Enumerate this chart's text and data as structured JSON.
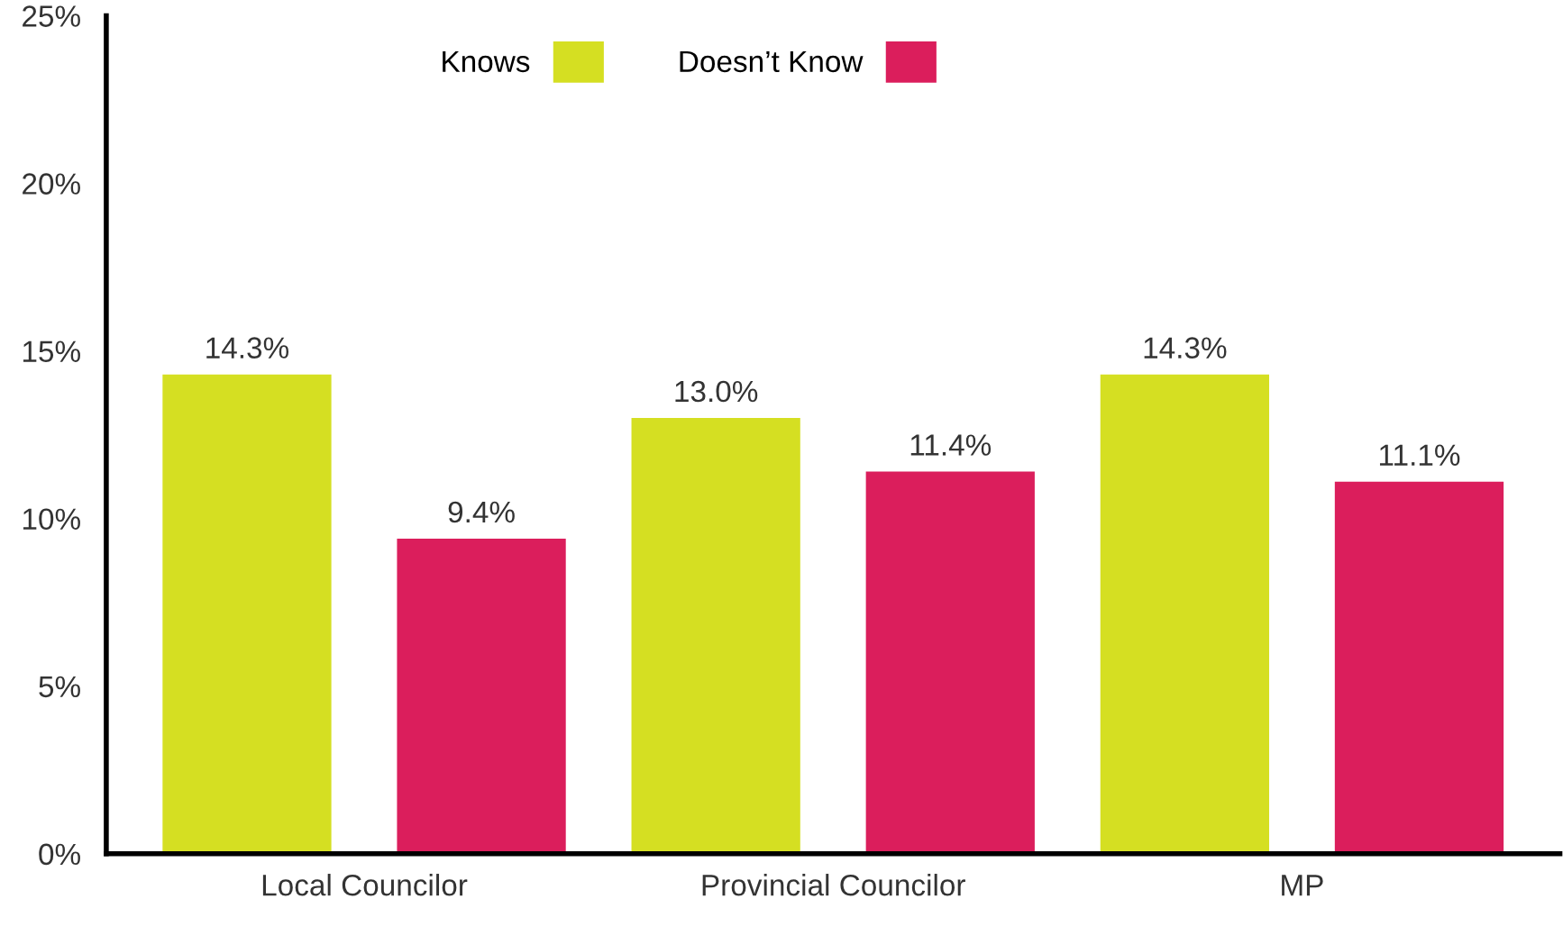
{
  "chart_data": {
    "type": "bar",
    "categories": [
      "Local Councilor",
      "Provincial Councilor",
      "MP"
    ],
    "series": [
      {
        "name": "Knows",
        "color": "#d5df22",
        "values": [
          14.3,
          13.0,
          14.3
        ]
      },
      {
        "name": "Doesn’t Know",
        "color": "#db1e5c",
        "values": [
          9.4,
          11.4,
          11.1
        ]
      }
    ],
    "ylim": [
      0,
      25
    ],
    "yticks": [
      {
        "value": 0,
        "label": "0%"
      },
      {
        "value": 5,
        "label": "5%"
      },
      {
        "value": 10,
        "label": "10%"
      },
      {
        "value": 15,
        "label": "15%"
      },
      {
        "value": 20,
        "label": "20%"
      },
      {
        "value": 25,
        "label": "25%"
      }
    ],
    "value_labels": [
      [
        "14.3%",
        "13.0%",
        "14.3%"
      ],
      [
        "9.4%",
        "11.4%",
        "11.1%"
      ]
    ],
    "grid": false,
    "legend": "top"
  }
}
